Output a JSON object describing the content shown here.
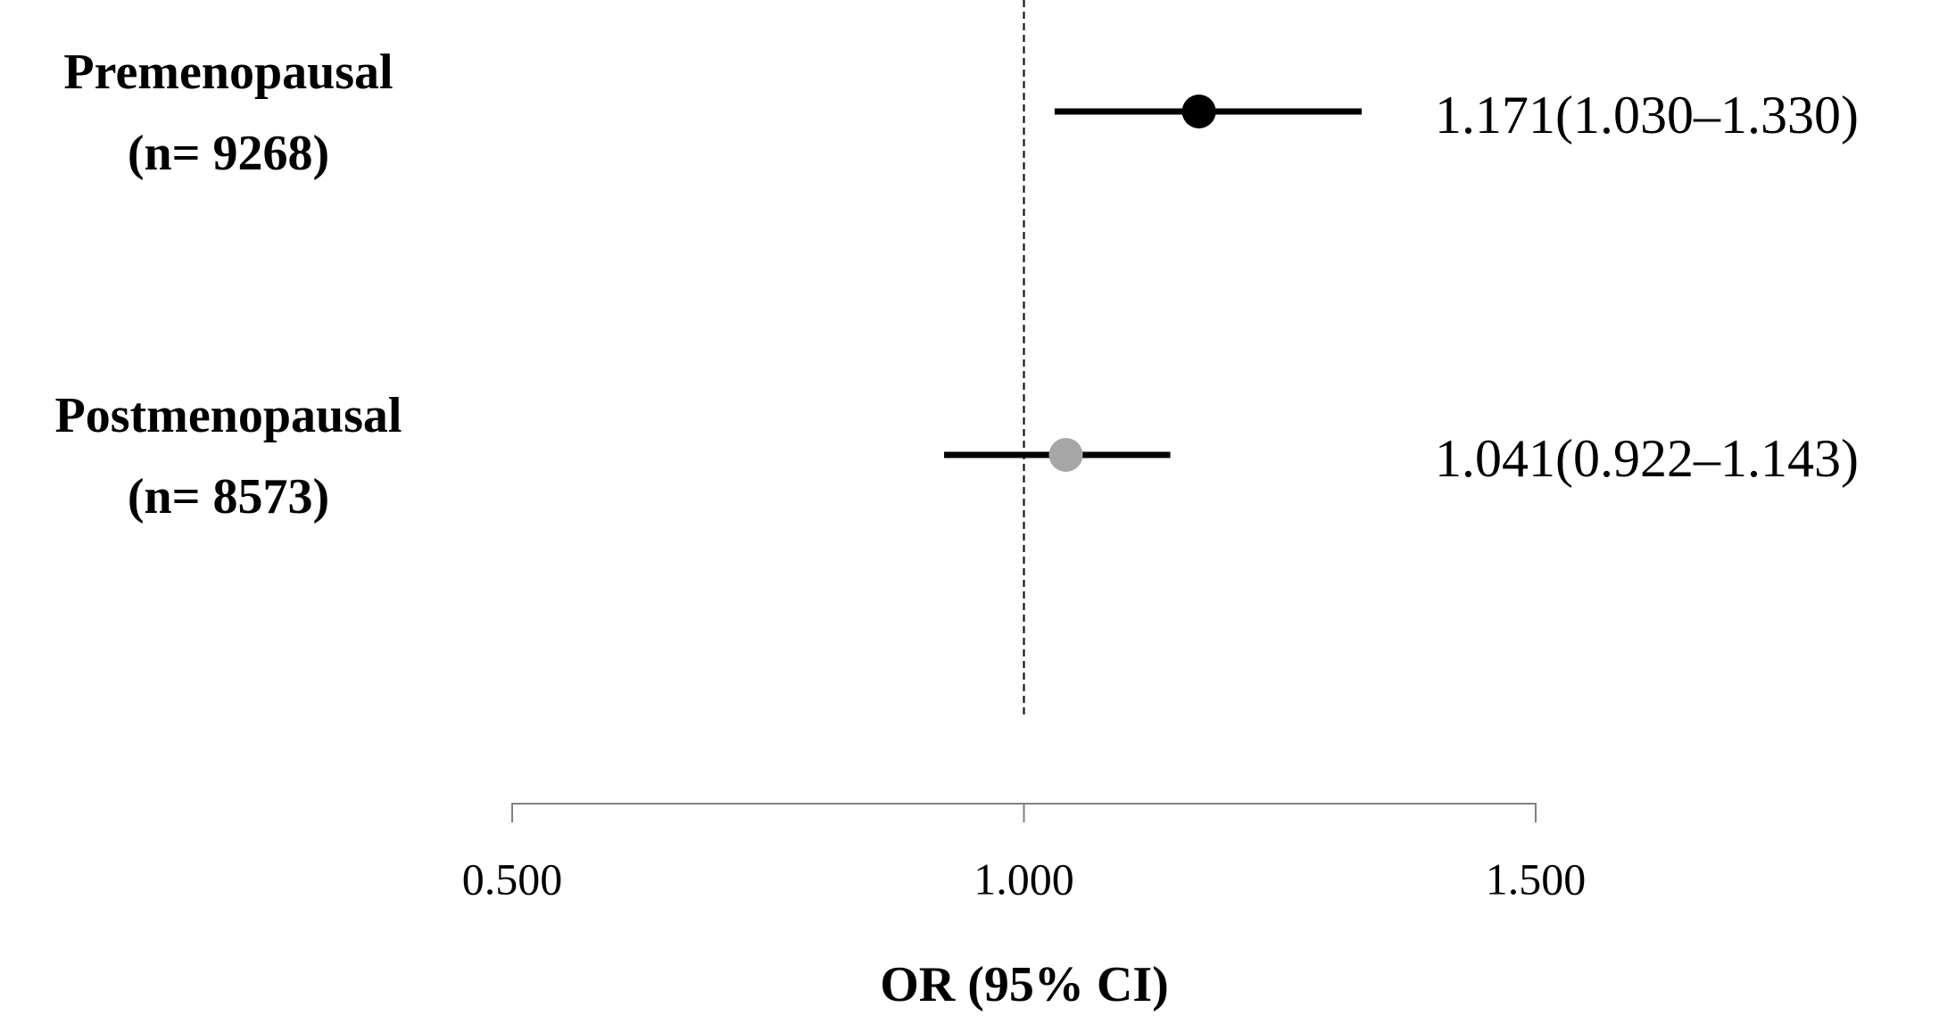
{
  "chart_data": {
    "type": "forest",
    "categories": [
      "Premenopausal",
      "Postmenopausal"
    ],
    "n_labels": [
      "(n= 9268)",
      "(n= 8573)"
    ],
    "values": [
      1.171,
      1.041
    ],
    "lower": [
      1.03,
      0.922
    ],
    "upper": [
      1.33,
      1.143
    ],
    "value_labels": [
      "1.171(1.030–1.330)",
      "1.041(0.922–1.143)"
    ],
    "colors": [
      "#000000",
      "#a6a6a6"
    ],
    "xlim": [
      0.5,
      1.5
    ],
    "xticks": [
      {
        "value": 0.5,
        "label": "0.500"
      },
      {
        "value": 1,
        "label": "1.000"
      },
      {
        "value": 1.5,
        "label": "1.500"
      }
    ],
    "reference_line": 1,
    "xlabel": "OR (95% CI)"
  }
}
